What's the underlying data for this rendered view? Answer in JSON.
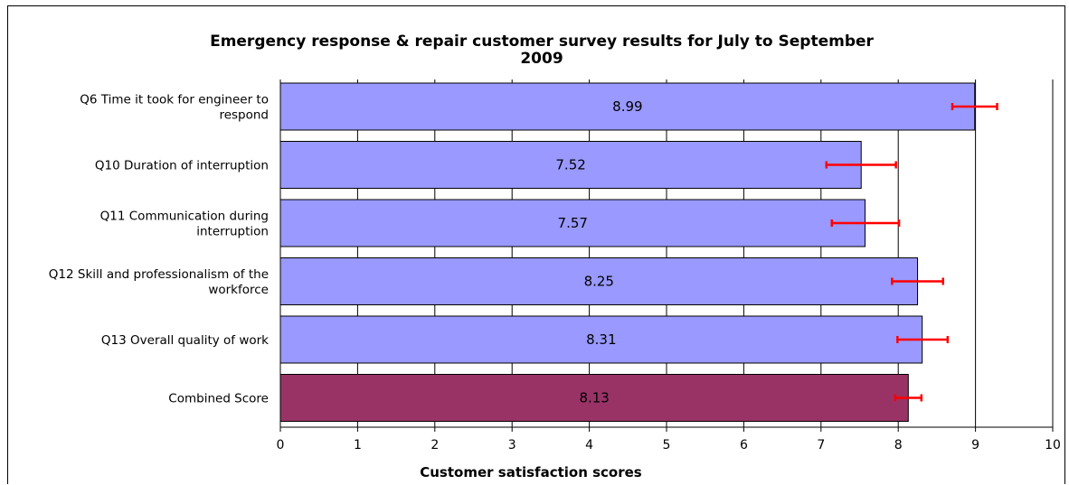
{
  "chart_data": {
    "type": "bar",
    "orientation": "horizontal",
    "title": "Emergency response & repair customer survey results for July to September 2009",
    "title_lines": [
      "Emergency response & repair customer survey results for July to September",
      "2009"
    ],
    "xlabel": "Customer satisfaction scores",
    "ylabel": "",
    "xlim": [
      0,
      10
    ],
    "x_ticks": [
      0,
      1,
      2,
      3,
      4,
      5,
      6,
      7,
      8,
      9,
      10
    ],
    "grid": "vertical",
    "categories": [
      {
        "lines": [
          "Q6 Time it took for engineer to",
          "respond"
        ],
        "value": 8.99,
        "value_label": "8.99",
        "error": [
          8.7,
          9.28
        ],
        "color": "#9999ff"
      },
      {
        "lines": [
          "Q10 Duration of interruption"
        ],
        "value": 7.52,
        "value_label": "7.52",
        "error": [
          7.07,
          7.97
        ],
        "color": "#9999ff"
      },
      {
        "lines": [
          "Q11 Communication during",
          "interruption"
        ],
        "value": 7.57,
        "value_label": "7.57",
        "error": [
          7.14,
          8.01
        ],
        "color": "#9999ff"
      },
      {
        "lines": [
          "Q12 Skill and professionalism of the",
          "workforce"
        ],
        "value": 8.25,
        "value_label": "8.25",
        "error": [
          7.92,
          8.58
        ],
        "color": "#9999ff"
      },
      {
        "lines": [
          "Q13 Overall quality of work"
        ],
        "value": 8.31,
        "value_label": "8.31",
        "error": [
          7.99,
          8.64
        ],
        "color": "#9999ff"
      },
      {
        "lines": [
          "Combined Score"
        ],
        "value": 8.13,
        "value_label": "8.13",
        "error": [
          7.96,
          8.3
        ],
        "color": "#993366"
      }
    ],
    "error_bar_color": "#ff0000",
    "gridline_color": "#000000"
  }
}
